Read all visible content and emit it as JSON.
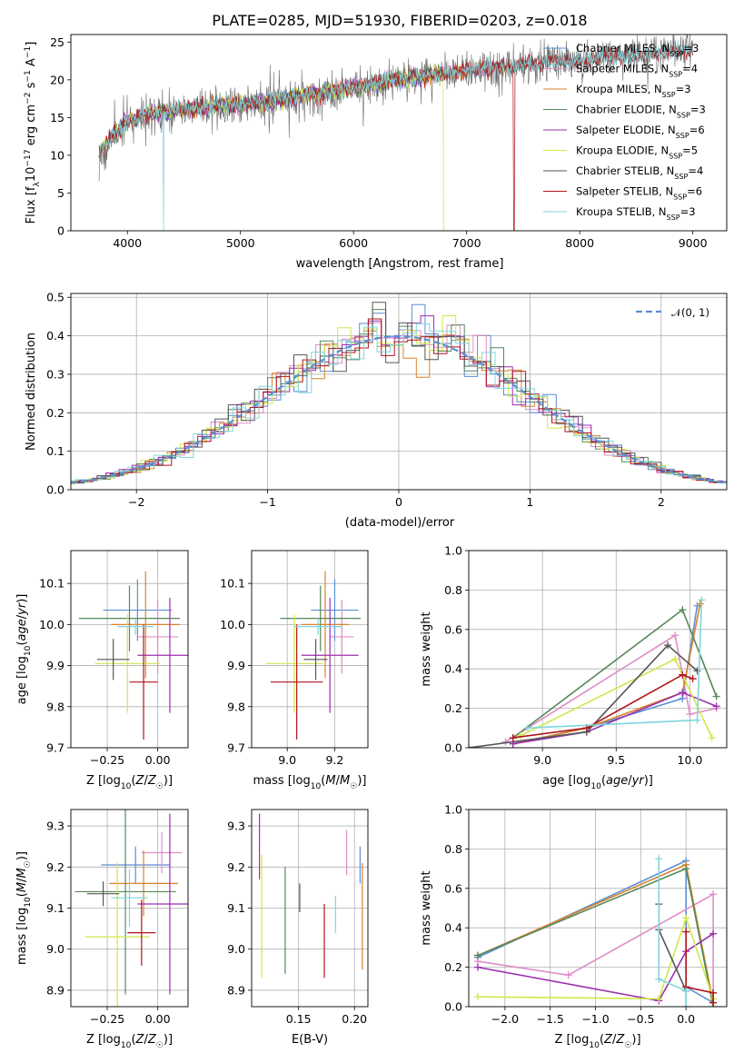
{
  "colors": {
    "chabrier_miles": "#5b8ed6",
    "salpeter_miles": "#e08cc8",
    "kroupa_miles": "#d9822b",
    "chabrier_elodie": "#55885a",
    "salpeter_elodie": "#9b2fae",
    "kroupa_elodie": "#cfe84a",
    "chabrier_stelib": "#555555",
    "salpeter_stelib": "#b0151a",
    "kroupa_stelib": "#7fd6dc",
    "normal_curve": "#5b8ed6",
    "grid": "#b0b0b0"
  },
  "chart_data": [
    {
      "id": "spectrum",
      "type": "line",
      "title": "PLATE=0285, MJD=51930, FIBERID=0203, z=0.018",
      "xlabel": "wavelength [Angstrom, rest frame]",
      "ylabel": "Flux [f_λ 10^-17 erg cm^-2 s^-1 A^-1]",
      "xlim": [
        3500,
        9300
      ],
      "ylim": [
        0,
        26
      ],
      "xticks": [
        "4000",
        "5000",
        "6000",
        "7000",
        "8000",
        "9000"
      ],
      "yticks": [
        "0",
        "5",
        "10",
        "15",
        "20",
        "25"
      ],
      "grid": false,
      "legend_position": "top-right",
      "legend": [
        {
          "key": "chabrier_miles",
          "label": "Chabrier MILES, N",
          "sub": "SSP",
          "suffix": "=3"
        },
        {
          "key": "salpeter_miles",
          "label": "Salpeter MILES, N",
          "sub": "SSP",
          "suffix": "=4"
        },
        {
          "key": "kroupa_miles",
          "label": "Kroupa MILES, N",
          "sub": "SSP",
          "suffix": "=3"
        },
        {
          "key": "chabrier_elodie",
          "label": "Chabrier ELODIE, N",
          "sub": "SSP",
          "suffix": "=3"
        },
        {
          "key": "salpeter_elodie",
          "label": "Salpeter ELODIE, N",
          "sub": "SSP",
          "suffix": "=6"
        },
        {
          "key": "kroupa_elodie",
          "label": "Kroupa ELODIE, N",
          "sub": "SSP",
          "suffix": "=5"
        },
        {
          "key": "chabrier_stelib",
          "label": "Chabrier STELIB, N",
          "sub": "SSP",
          "suffix": "=4"
        },
        {
          "key": "salpeter_stelib",
          "label": "Salpeter STELIB, N",
          "sub": "SSP",
          "suffix": "=6"
        },
        {
          "key": "kroupa_stelib",
          "label": "Kroupa STELIB, N",
          "sub": "SSP",
          "suffix": "=3"
        }
      ],
      "continuum": [
        [
          3750,
          10.5
        ],
        [
          3900,
          13.0
        ],
        [
          4000,
          14.5
        ],
        [
          4200,
          15.5
        ],
        [
          4500,
          16.0
        ],
        [
          4800,
          16.5
        ],
        [
          5000,
          16.8
        ],
        [
          5200,
          17.0
        ],
        [
          5500,
          17.8
        ],
        [
          6000,
          19.0
        ],
        [
          6500,
          20.2
        ],
        [
          7000,
          21.2
        ],
        [
          7500,
          22.0
        ],
        [
          8000,
          22.6
        ],
        [
          8500,
          23.2
        ],
        [
          9000,
          24.0
        ]
      ],
      "model_dropouts": [
        {
          "key": "kroupa_elodie",
          "x": 6800
        },
        {
          "key": "salpeter_stelib",
          "x": 7420
        },
        {
          "key": "kroupa_stelib",
          "x": 4320
        }
      ],
      "model_extent": {
        "miles_xmax": 7400,
        "elodie_xmax": 6800,
        "stelib_xmax": 9000,
        "xmin": 3750
      }
    },
    {
      "id": "residuals",
      "type": "histogram",
      "xlabel": "(data-model)/error",
      "ylabel": "Normed distribution",
      "xlim": [
        -2.5,
        2.5
      ],
      "ylim": [
        0,
        0.51
      ],
      "xticks": [
        "−2",
        "−1",
        "0",
        "1",
        "2"
      ],
      "yticks": [
        "0.0",
        "0.1",
        "0.2",
        "0.3",
        "0.4",
        "0.5"
      ],
      "grid": true,
      "bin_width": 0.1,
      "legend": {
        "label": "𝒩(0, 1)",
        "position": "top-right"
      },
      "models": [
        "chabrier_miles",
        "salpeter_miles",
        "kroupa_miles",
        "chabrier_elodie",
        "salpeter_elodie",
        "kroupa_elodie",
        "chabrier_stelib",
        "salpeter_stelib",
        "kroupa_stelib"
      ]
    },
    {
      "id": "age_vs_Z",
      "type": "errorbar",
      "xlabel": "Z [log10(Z/Z☉)]",
      "ylabel": "age  [log10(age/yr)]",
      "xlim": [
        -0.43,
        0.15
      ],
      "ylim": [
        9.7,
        10.18
      ],
      "xticks": [
        "−0.25",
        "0.00"
      ],
      "yticks": [
        "9.7",
        "9.8",
        "9.9",
        "10.0",
        "10.1"
      ],
      "grid": true,
      "points": [
        {
          "key": "chabrier_miles",
          "x": -0.1,
          "xerr": 0.17,
          "y": 10.035,
          "yerr": 0.075
        },
        {
          "key": "salpeter_miles",
          "x": 0.0,
          "xerr": 0.1,
          "y": 9.97,
          "yerr": 0.09
        },
        {
          "key": "kroupa_miles",
          "x": -0.06,
          "xerr": 0.17,
          "y": 10.0,
          "yerr": 0.13
        },
        {
          "key": "chabrier_elodie",
          "x": -0.14,
          "xerr": 0.25,
          "y": 10.015,
          "yerr": 0.08
        },
        {
          "key": "salpeter_elodie",
          "x": 0.06,
          "xerr": 0.16,
          "y": 9.925,
          "yerr": 0.14
        },
        {
          "key": "kroupa_elodie",
          "x": -0.15,
          "xerr": 0.16,
          "y": 9.905,
          "yerr": 0.12
        },
        {
          "key": "chabrier_stelib",
          "x": -0.22,
          "xerr": 0.08,
          "y": 9.915,
          "yerr": 0.05
        },
        {
          "key": "salpeter_stelib",
          "x": -0.07,
          "xerr": 0.07,
          "y": 9.86,
          "yerr": 0.14
        },
        {
          "key": "kroupa_stelib",
          "x": -0.11,
          "xerr": 0.09,
          "y": 9.995,
          "yerr": 0.02
        }
      ]
    },
    {
      "id": "age_vs_mass",
      "type": "errorbar",
      "xlabel": "mass [log10(M/M☉)]",
      "ylabel": "",
      "xlim": [
        8.85,
        9.34
      ],
      "ylim": [
        9.7,
        10.18
      ],
      "xticks": [
        "9.0",
        "9.2"
      ],
      "yticks": [
        "9.7",
        "9.8",
        "9.9",
        "10.0",
        "10.1"
      ],
      "grid": true,
      "points": [
        {
          "key": "chabrier_miles",
          "x": 9.2,
          "xerr": 0.1,
          "y": 10.035,
          "yerr": 0.075
        },
        {
          "key": "salpeter_miles",
          "x": 9.23,
          "xerr": 0.05,
          "y": 9.97,
          "yerr": 0.09
        },
        {
          "key": "kroupa_miles",
          "x": 9.16,
          "xerr": 0.1,
          "y": 10.0,
          "yerr": 0.13
        },
        {
          "key": "chabrier_elodie",
          "x": 9.14,
          "xerr": 0.17,
          "y": 10.015,
          "yerr": 0.08
        },
        {
          "key": "salpeter_elodie",
          "x": 9.18,
          "xerr": 0.12,
          "y": 9.925,
          "yerr": 0.14
        },
        {
          "key": "kroupa_elodie",
          "x": 9.03,
          "xerr": 0.12,
          "y": 9.905,
          "yerr": 0.12
        },
        {
          "key": "chabrier_stelib",
          "x": 9.12,
          "xerr": 0.05,
          "y": 9.915,
          "yerr": 0.05
        },
        {
          "key": "salpeter_stelib",
          "x": 9.04,
          "xerr": 0.11,
          "y": 9.86,
          "yerr": 0.14
        },
        {
          "key": "kroupa_stelib",
          "x": 9.13,
          "xerr": 0.1,
          "y": 9.995,
          "yerr": 0.02
        }
      ]
    },
    {
      "id": "weight_vs_age",
      "type": "line",
      "xlabel": "age  [log10(age/yr)]",
      "ylabel": "mass weight",
      "xlim": [
        8.5,
        10.25
      ],
      "ylim": [
        0,
        1.0
      ],
      "xticks": [
        "9.0",
        "9.5",
        "10.0"
      ],
      "yticks": [
        "0.0",
        "0.2",
        "0.4",
        "0.6",
        "0.8",
        "1.0"
      ],
      "grid": true,
      "series": [
        {
          "key": "chabrier_miles",
          "points": [
            [
              8.8,
              0.02
            ],
            [
              9.3,
              0.1
            ],
            [
              9.95,
              0.25
            ],
            [
              10.05,
              0.72
            ]
          ]
        },
        {
          "key": "salpeter_miles",
          "points": [
            [
              8.75,
              0.03
            ],
            [
              9.9,
              0.57
            ],
            [
              10.0,
              0.17
            ],
            [
              10.18,
              0.2
            ]
          ]
        },
        {
          "key": "kroupa_miles",
          "points": [
            [
              8.8,
              0.02
            ],
            [
              9.3,
              0.1
            ],
            [
              9.95,
              0.28
            ],
            [
              10.07,
              0.73
            ]
          ]
        },
        {
          "key": "chabrier_elodie",
          "points": [
            [
              8.8,
              0.05
            ],
            [
              9.95,
              0.7
            ],
            [
              10.18,
              0.26
            ]
          ]
        },
        {
          "key": "salpeter_elodie",
          "points": [
            [
              8.8,
              0.02
            ],
            [
              9.3,
              0.08
            ],
            [
              9.95,
              0.28
            ],
            [
              10.18,
              0.21
            ]
          ]
        },
        {
          "key": "kroupa_elodie",
          "points": [
            [
              8.85,
              0.06
            ],
            [
              9.9,
              0.45
            ],
            [
              10.15,
              0.05
            ]
          ]
        },
        {
          "key": "chabrier_stelib",
          "points": [
            [
              8.5,
              0.0
            ],
            [
              9.3,
              0.08
            ],
            [
              9.85,
              0.52
            ],
            [
              10.05,
              0.39
            ]
          ]
        },
        {
          "key": "salpeter_stelib",
          "points": [
            [
              8.8,
              0.05
            ],
            [
              9.3,
              0.1
            ],
            [
              9.95,
              0.37
            ],
            [
              10.02,
              0.35
            ]
          ]
        },
        {
          "key": "kroupa_stelib",
          "points": [
            [
              8.9,
              0.1
            ],
            [
              10.05,
              0.14
            ],
            [
              10.08,
              0.75
            ]
          ]
        }
      ]
    },
    {
      "id": "mass_vs_Z",
      "type": "errorbar",
      "xlabel": "Z [log10(Z/Z☉)]",
      "ylabel": "mass [log10(M/M☉)]",
      "xlim": [
        -0.43,
        0.15
      ],
      "ylim": [
        8.86,
        9.34
      ],
      "xticks": [
        "−0.25",
        "0.00"
      ],
      "yticks": [
        "8.9",
        "9.0",
        "9.1",
        "9.2",
        "9.3"
      ],
      "grid": true,
      "points": [
        {
          "key": "chabrier_miles",
          "x": -0.11,
          "xerr": 0.17,
          "y": 9.205,
          "yerr": 0.045
        },
        {
          "key": "salpeter_miles",
          "x": 0.02,
          "xerr": 0.1,
          "y": 9.235,
          "yerr": 0.05
        },
        {
          "key": "kroupa_miles",
          "x": -0.07,
          "xerr": 0.17,
          "y": 9.16,
          "yerr": 0.08
        },
        {
          "key": "chabrier_elodie",
          "x": -0.16,
          "xerr": 0.25,
          "y": 9.14,
          "yerr": 0.25
        },
        {
          "key": "salpeter_elodie",
          "x": 0.06,
          "xerr": 0.16,
          "y": 9.11,
          "yerr": 0.22
        },
        {
          "key": "kroupa_elodie",
          "x": -0.2,
          "xerr": 0.16,
          "y": 9.03,
          "yerr": 0.18
        },
        {
          "key": "chabrier_stelib",
          "x": -0.27,
          "xerr": 0.08,
          "y": 9.135,
          "yerr": 0.03
        },
        {
          "key": "salpeter_stelib",
          "x": -0.08,
          "xerr": 0.07,
          "y": 9.04,
          "yerr": 0.08
        },
        {
          "key": "kroupa_stelib",
          "x": -0.14,
          "xerr": 0.09,
          "y": 9.125,
          "yerr": 0.07
        }
      ]
    },
    {
      "id": "mass_vs_ebv",
      "type": "errorbar",
      "xlabel": "E(B-V)",
      "ylabel": "",
      "xlim": [
        0.108,
        0.212
      ],
      "ylim": [
        8.86,
        9.34
      ],
      "xticks": [
        "0.15",
        "0.20"
      ],
      "yticks": [
        "8.9",
        "9.0",
        "9.1",
        "9.2",
        "9.3"
      ],
      "grid": true,
      "points": [
        {
          "key": "chabrier_miles",
          "x": 0.205,
          "y": 9.205,
          "yerr": 0.045
        },
        {
          "key": "salpeter_miles",
          "x": 0.193,
          "y": 9.235,
          "yerr": 0.055
        },
        {
          "key": "kroupa_miles",
          "x": 0.207,
          "y": 9.08,
          "yerr": 0.13
        },
        {
          "key": "chabrier_elodie",
          "x": 0.138,
          "y": 9.07,
          "yerr": 0.13
        },
        {
          "key": "salpeter_elodie",
          "x": 0.115,
          "y": 9.25,
          "yerr": 0.08
        },
        {
          "key": "kroupa_elodie",
          "x": 0.117,
          "y": 9.08,
          "yerr": 0.15
        },
        {
          "key": "chabrier_stelib",
          "x": 0.151,
          "y": 9.125,
          "yerr": 0.035
        },
        {
          "key": "salpeter_stelib",
          "x": 0.173,
          "y": 9.02,
          "yerr": 0.09
        },
        {
          "key": "kroupa_stelib",
          "x": 0.183,
          "y": 9.085,
          "yerr": 0.045
        }
      ]
    },
    {
      "id": "weight_vs_Z",
      "type": "line",
      "xlabel": "Z [log10(Z/Z☉)]",
      "ylabel": "mass weight",
      "xlim": [
        -2.4,
        0.45
      ],
      "ylim": [
        0,
        1.0
      ],
      "xticks": [
        "−2.0",
        "−1.5",
        "−1.0",
        "−0.5",
        "0.0"
      ],
      "yticks": [
        "0.0",
        "0.2",
        "0.4",
        "0.6",
        "0.8",
        "1.0"
      ],
      "grid": true,
      "series": [
        {
          "key": "chabrier_miles",
          "points": [
            [
              -2.3,
              0.25
            ],
            [
              0.0,
              0.74
            ],
            [
              0.0,
              0.1
            ],
            [
              0.3,
              0.02
            ]
          ]
        },
        {
          "key": "salpeter_miles",
          "points": [
            [
              -2.3,
              0.23
            ],
            [
              -1.3,
              0.16
            ],
            [
              0.3,
              0.57
            ],
            [
              0.3,
              0.02
            ]
          ]
        },
        {
          "key": "kroupa_miles",
          "points": [
            [
              -2.3,
              0.26
            ],
            [
              0.0,
              0.72
            ],
            [
              0.3,
              0.02
            ]
          ]
        },
        {
          "key": "chabrier_elodie",
          "points": [
            [
              -2.3,
              0.26
            ],
            [
              0.0,
              0.7
            ],
            [
              0.3,
              0.0
            ]
          ]
        },
        {
          "key": "salpeter_elodie",
          "points": [
            [
              -2.3,
              0.2
            ],
            [
              -0.3,
              0.03
            ],
            [
              0.0,
              0.28
            ],
            [
              0.3,
              0.37
            ]
          ]
        },
        {
          "key": "kroupa_elodie",
          "points": [
            [
              -2.3,
              0.05
            ],
            [
              -0.3,
              0.04
            ],
            [
              0.0,
              0.45
            ],
            [
              0.3,
              0.04
            ]
          ]
        },
        {
          "key": "chabrier_stelib",
          "points": [
            [
              -0.3,
              0.52
            ],
            [
              -0.3,
              0.39
            ],
            [
              0.0,
              0.08
            ],
            [
              0.0,
              0.0
            ]
          ]
        },
        {
          "key": "salpeter_stelib",
          "points": [
            [
              0.0,
              0.38
            ],
            [
              0.0,
              0.1
            ],
            [
              0.3,
              0.07
            ],
            [
              0.3,
              0.02
            ]
          ]
        },
        {
          "key": "kroupa_stelib",
          "points": [
            [
              -0.3,
              0.75
            ],
            [
              -0.3,
              0.14
            ],
            [
              0.0,
              0.08
            ],
            [
              0.0,
              0.0
            ]
          ]
        }
      ]
    }
  ]
}
